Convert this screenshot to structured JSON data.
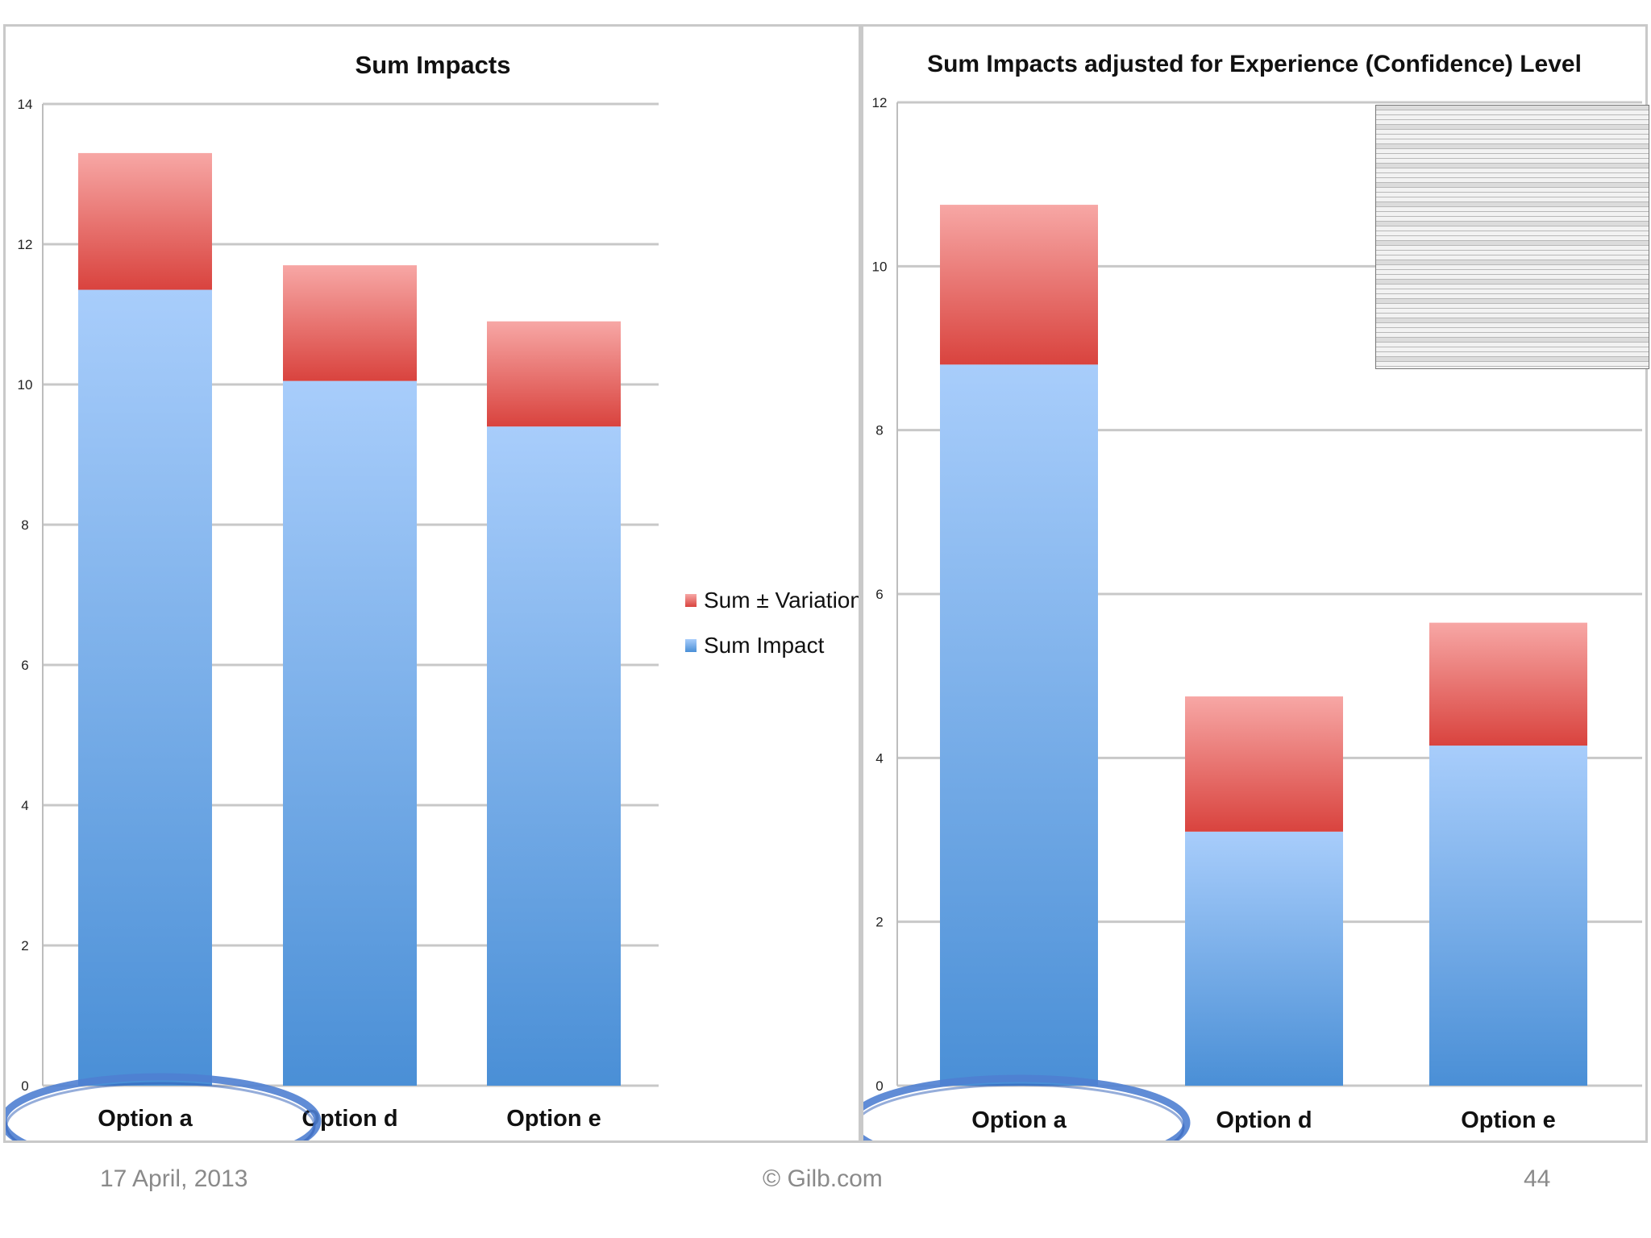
{
  "colors": {
    "impact_top": "#a8cdfb",
    "impact_bottom": "#4a8fd6",
    "variation_top": "#f7a7a5",
    "variation_bottom": "#d9433e",
    "highlight_ellipse": "#4f7fd1",
    "gridline": "#c8c8c8"
  },
  "chart_data": [
    {
      "type": "bar",
      "stacked": true,
      "title": "Sum Impacts",
      "categories": [
        "Option a",
        "Option d",
        "Option e"
      ],
      "series": [
        {
          "name": "Sum Impact",
          "values": [
            11.35,
            10.05,
            9.4
          ]
        },
        {
          "name": "Sum ± Variation",
          "values": [
            1.95,
            1.65,
            1.5
          ]
        }
      ],
      "yticks": [
        "0",
        "2",
        "4",
        "6",
        "8",
        "10",
        "12",
        "14"
      ],
      "ylim": [
        0,
        14
      ],
      "grid": true,
      "legend": "right",
      "highlighted_category": "Option a"
    },
    {
      "type": "bar",
      "stacked": true,
      "title": "Sum Impacts adjusted for Experience (Confidence) Level",
      "categories": [
        "Option a",
        "Option d",
        "Option e"
      ],
      "series": [
        {
          "name": "Sum Impact",
          "values": [
            8.8,
            3.1,
            4.15
          ]
        },
        {
          "name": "Sum ± Variation",
          "values": [
            1.95,
            1.65,
            1.5
          ]
        }
      ],
      "yticks": [
        "0",
        "2",
        "4",
        "6",
        "8",
        "10",
        "12"
      ],
      "ylim": [
        0,
        12
      ],
      "grid": true,
      "legend": "none",
      "highlighted_category": "Option a"
    }
  ],
  "legend": {
    "items": [
      "Sum ± Variation",
      "Sum Impact"
    ]
  },
  "footer": {
    "date": "17 April, 2013",
    "copyright": "© Gilb.com",
    "page": "44"
  }
}
